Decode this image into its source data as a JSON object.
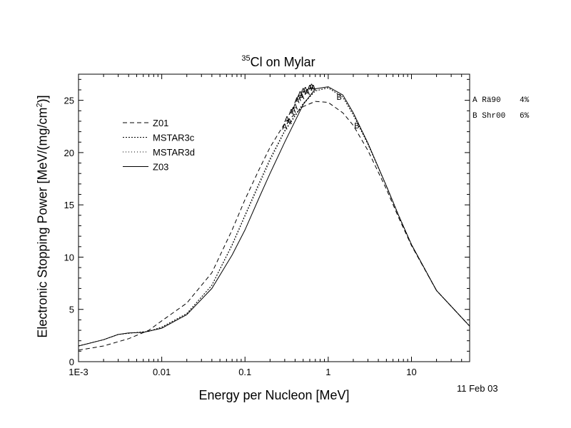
{
  "chart_data": {
    "type": "line",
    "title": {
      "superscript": "35",
      "text": "Cl on Mylar"
    },
    "xlabel": "Energy per Nucleon [MeV]",
    "ylabel": {
      "text": "Electronic Stopping Power [MeV/(mg/cm",
      "superscript": "2",
      "suffix": ")]"
    },
    "xscale": "log",
    "xlim": [
      0.001,
      50
    ],
    "ylim": [
      0,
      27.5
    ],
    "x_tick_labels": [
      {
        "value": 0.001,
        "label": "1E-3"
      },
      {
        "value": 0.01,
        "label": "0.01"
      },
      {
        "value": 0.1,
        "label": "0.1"
      },
      {
        "value": 1,
        "label": "1"
      },
      {
        "value": 10,
        "label": "10"
      }
    ],
    "y_ticks": [
      0,
      5,
      10,
      15,
      20,
      25
    ],
    "legend_position": "upper-left",
    "series": [
      {
        "name": "Z01",
        "dash": "6,4",
        "points": [
          [
            0.001,
            1.1
          ],
          [
            0.002,
            1.5
          ],
          [
            0.004,
            2.2
          ],
          [
            0.007,
            3.0
          ],
          [
            0.01,
            3.9
          ],
          [
            0.02,
            5.6
          ],
          [
            0.04,
            8.5
          ],
          [
            0.07,
            12.6
          ],
          [
            0.1,
            15.5
          ],
          [
            0.15,
            18.5
          ],
          [
            0.2,
            20.5
          ],
          [
            0.3,
            22.8
          ],
          [
            0.5,
            24.4
          ],
          [
            0.7,
            24.9
          ],
          [
            1.0,
            24.8
          ],
          [
            1.5,
            23.8
          ],
          [
            2.0,
            22.6
          ],
          [
            3.0,
            20.2
          ],
          [
            5.0,
            16.5
          ],
          [
            7.0,
            13.8
          ],
          [
            10.0,
            11.1
          ],
          [
            20.0,
            6.8
          ],
          [
            50.0,
            3.4
          ]
        ]
      },
      {
        "name": "MSTAR3c",
        "dash": "2,2",
        "points": [
          [
            0.001,
            1.5
          ],
          [
            0.002,
            2.1
          ],
          [
            0.003,
            2.6
          ],
          [
            0.005,
            2.8
          ],
          [
            0.007,
            2.9
          ],
          [
            0.01,
            3.3
          ],
          [
            0.02,
            4.6
          ],
          [
            0.04,
            7.3
          ],
          [
            0.07,
            11.2
          ],
          [
            0.1,
            14.0
          ],
          [
            0.15,
            17.2
          ],
          [
            0.2,
            19.4
          ],
          [
            0.3,
            22.1
          ],
          [
            0.5,
            24.7
          ],
          [
            0.7,
            25.9
          ],
          [
            1.0,
            26.2
          ],
          [
            1.5,
            25.3
          ],
          [
            2.0,
            23.6
          ],
          [
            3.0,
            20.8
          ],
          [
            5.0,
            16.8
          ],
          [
            7.0,
            14.0
          ],
          [
            10.0,
            11.2
          ],
          [
            20.0,
            6.8
          ],
          [
            50.0,
            3.4
          ]
        ]
      },
      {
        "name": "MSTAR3d",
        "dash": "1,3",
        "points": [
          [
            0.001,
            1.5
          ],
          [
            0.002,
            2.1
          ],
          [
            0.003,
            2.6
          ],
          [
            0.005,
            2.8
          ],
          [
            0.007,
            2.9
          ],
          [
            0.01,
            3.3
          ],
          [
            0.02,
            4.6
          ],
          [
            0.04,
            7.3
          ],
          [
            0.07,
            11.1
          ],
          [
            0.1,
            13.9
          ],
          [
            0.15,
            17.0
          ],
          [
            0.2,
            19.2
          ],
          [
            0.3,
            22.0
          ],
          [
            0.5,
            24.6
          ],
          [
            0.7,
            25.9
          ],
          [
            1.0,
            26.2
          ],
          [
            1.5,
            25.3
          ],
          [
            2.0,
            23.6
          ],
          [
            3.0,
            20.8
          ],
          [
            5.0,
            16.8
          ],
          [
            7.0,
            14.0
          ],
          [
            10.0,
            11.2
          ],
          [
            20.0,
            6.8
          ],
          [
            50.0,
            3.4
          ]
        ]
      },
      {
        "name": "Z03",
        "dash": "",
        "points": [
          [
            0.001,
            1.5
          ],
          [
            0.002,
            2.1
          ],
          [
            0.003,
            2.6
          ],
          [
            0.004,
            2.75
          ],
          [
            0.006,
            2.8
          ],
          [
            0.01,
            3.2
          ],
          [
            0.02,
            4.5
          ],
          [
            0.04,
            7.0
          ],
          [
            0.07,
            10.2
          ],
          [
            0.1,
            12.6
          ],
          [
            0.15,
            15.8
          ],
          [
            0.2,
            18.0
          ],
          [
            0.3,
            21.0
          ],
          [
            0.5,
            24.6
          ],
          [
            0.7,
            26.1
          ],
          [
            1.0,
            26.3
          ],
          [
            1.5,
            25.5
          ],
          [
            2.0,
            23.8
          ],
          [
            3.0,
            20.9
          ],
          [
            5.0,
            16.8
          ],
          [
            7.0,
            14.0
          ],
          [
            10.0,
            11.2
          ],
          [
            20.0,
            6.8
          ],
          [
            50.0,
            3.4
          ]
        ]
      }
    ],
    "experimental_data": [
      {
        "marker": "A",
        "points": [
          [
            0.3,
            22.5
          ],
          [
            0.32,
            23.2
          ],
          [
            0.34,
            23.0
          ],
          [
            0.36,
            23.9
          ],
          [
            0.38,
            24.1
          ],
          [
            0.4,
            24.4
          ],
          [
            0.42,
            25.0
          ],
          [
            0.44,
            25.2
          ],
          [
            0.46,
            25.6
          ],
          [
            0.48,
            25.4
          ],
          [
            0.5,
            25.9
          ],
          [
            0.53,
            26.0
          ],
          [
            0.56,
            25.8
          ],
          [
            0.6,
            26.2
          ],
          [
            0.63,
            26.3
          ],
          [
            0.66,
            26.2
          ]
        ]
      },
      {
        "marker": "B",
        "points": [
          [
            1.35,
            25.3
          ],
          [
            2.2,
            22.6
          ]
        ]
      }
    ],
    "references": [
      {
        "label": "A",
        "source": "Rä90",
        "uncertainty": "4%"
      },
      {
        "label": "B",
        "source": "Shr00",
        "uncertainty": "6%"
      }
    ],
    "date": "11 Feb 03"
  }
}
